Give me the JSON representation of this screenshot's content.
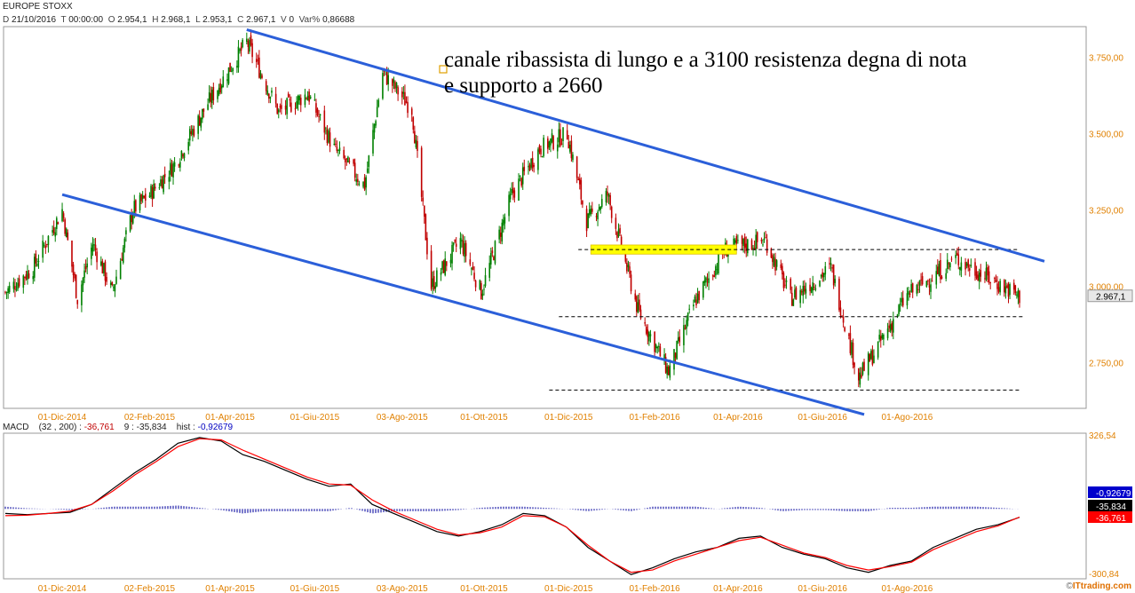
{
  "header": {
    "instrument": "EUROPE STOXX",
    "date_label": "D",
    "date": "21/10/2016",
    "time_label": "T",
    "time": "00:00:00",
    "open_label": "O",
    "open": "2.954,1",
    "high_label": "H",
    "high": "2.968,1",
    "low_label": "L",
    "low": "2.953,1",
    "close_label": "C",
    "close": "2.967,1",
    "volume_label": "V",
    "volume": "0",
    "var_label": "Var%",
    "var": "0,86688"
  },
  "annotation": {
    "line1": "canale ribassista di lungo e a 3100 resistenza degna di nota",
    "line2": "e supporto a 2660"
  },
  "macd_header": {
    "label": "MACD",
    "params": "(32 , 200) :",
    "macd_value": "-36,761",
    "signal_label": "9 :",
    "signal_value": "-35,834",
    "hist_label": "hist :",
    "hist_value": "-0,92679"
  },
  "copyright": {
    "symbol": "©",
    "brand": "ITtrading.com"
  },
  "colors": {
    "up_candle": "#008000",
    "down_candle": "#c00000",
    "channel": "#2b5fd9",
    "highlight": "#ffff00",
    "macd": "#000000",
    "signal": "#ff0000",
    "hist": "#2222aa"
  },
  "chart_data": [
    {
      "type": "candlestick",
      "title": "EUROPE STOXX",
      "ylim": [
        2600,
        3850
      ],
      "y_ticks": [
        "3.750,00",
        "3.500,00",
        "3.250,00",
        "3.000,00",
        "2.750,00"
      ],
      "y_tick_values": [
        3750,
        3500,
        3250,
        3000,
        2750
      ],
      "x_ticks": [
        "01-Dic-2014",
        "02-Feb-2015",
        "01-Apr-2015",
        "01-Giu-2015",
        "03-Ago-2015",
        "01-Ott-2015",
        "01-Dic-2015",
        "01-Feb-2016",
        "01-Apr-2016",
        "01-Giu-2016",
        "01-Ago-2016"
      ],
      "last_price_label": "2.967,1",
      "last_price": 2967.1,
      "approx_close_path": [
        [
          "2014-10-21",
          2980
        ],
        [
          "2014-11-10",
          3060
        ],
        [
          "2014-12-01",
          3250
        ],
        [
          "2014-12-12",
          2960
        ],
        [
          "2014-12-23",
          3140
        ],
        [
          "2015-01-06",
          2980
        ],
        [
          "2015-01-21",
          3250
        ],
        [
          "2015-02-02",
          3300
        ],
        [
          "2015-02-20",
          3400
        ],
        [
          "2015-03-16",
          3600
        ],
        [
          "2015-04-13",
          3800
        ],
        [
          "2015-05-06",
          3570
        ],
        [
          "2015-05-27",
          3630
        ],
        [
          "2015-06-15",
          3450
        ],
        [
          "2015-07-07",
          3330
        ],
        [
          "2015-07-20",
          3700
        ],
        [
          "2015-08-10",
          3580
        ],
        [
          "2015-08-24",
          3000
        ],
        [
          "2015-09-14",
          3150
        ],
        [
          "2015-09-29",
          2980
        ],
        [
          "2015-10-21",
          3300
        ],
        [
          "2015-11-10",
          3450
        ],
        [
          "2015-11-30",
          3500
        ],
        [
          "2015-12-14",
          3210
        ],
        [
          "2015-12-29",
          3300
        ],
        [
          "2016-01-20",
          2920
        ],
        [
          "2016-02-11",
          2720
        ],
        [
          "2016-03-01",
          2950
        ],
        [
          "2016-03-23",
          3120
        ],
        [
          "2016-04-21",
          3150
        ],
        [
          "2016-05-09",
          2960
        ],
        [
          "2016-06-07",
          3060
        ],
        [
          "2016-06-27",
          2700
        ],
        [
          "2016-07-08",
          2780
        ],
        [
          "2016-08-01",
          2970
        ],
        [
          "2016-08-22",
          3040
        ],
        [
          "2016-09-05",
          3090
        ],
        [
          "2016-10-21",
          2967
        ]
      ],
      "channel_upper": [
        [
          "2015-04-13",
          3840
        ],
        [
          "2016-10-21",
          3105
        ]
      ],
      "channel_lower": [
        [
          "2014-12-01",
          3300
        ],
        [
          "2016-07-01",
          2580
        ]
      ],
      "resistance_level": 3120,
      "support_levels": [
        2900,
        2660
      ],
      "highlight_zone": [
        3135,
        3105
      ]
    },
    {
      "type": "line",
      "title": "MACD",
      "ylim": [
        -300.84,
        326.54
      ],
      "y_ticks": [
        "326,54",
        "-300,84"
      ],
      "right_labels": [
        "-0,92679",
        "-35,834",
        "-36,761"
      ],
      "series": [
        {
          "name": "MACD",
          "values": [
            -20,
            -25,
            -20,
            -15,
            20,
            90,
            160,
            220,
            290,
            315,
            300,
            240,
            210,
            170,
            130,
            100,
            110,
            20,
            -20,
            -60,
            -100,
            -120,
            -100,
            -70,
            -20,
            -30,
            -80,
            -170,
            -230,
            -290,
            -260,
            -220,
            -190,
            -170,
            -130,
            -120,
            -170,
            -200,
            -220,
            -260,
            -280,
            -250,
            -230,
            -170,
            -130,
            -90,
            -70,
            -37
          ]
        },
        {
          "name": "signal",
          "values": [
            -30,
            -28,
            -20,
            -10,
            20,
            80,
            150,
            210,
            275,
            310,
            305,
            260,
            220,
            180,
            140,
            110,
            105,
            40,
            -10,
            -50,
            -90,
            -115,
            -105,
            -80,
            -30,
            -35,
            -80,
            -160,
            -230,
            -280,
            -270,
            -230,
            -200,
            -170,
            -140,
            -125,
            -160,
            -195,
            -215,
            -250,
            -270,
            -255,
            -235,
            -180,
            -140,
            -100,
            -75,
            -36
          ]
        },
        {
          "name": "hist",
          "values": [
            10,
            3,
            0,
            -5,
            0,
            10,
            10,
            10,
            15,
            5,
            -5,
            -20,
            -10,
            -10,
            -10,
            -10,
            5,
            -20,
            -10,
            -10,
            -10,
            -5,
            5,
            10,
            10,
            5,
            0,
            -10,
            0,
            -10,
            10,
            10,
            10,
            0,
            10,
            5,
            -10,
            -5,
            -5,
            -10,
            -10,
            5,
            5,
            10,
            10,
            10,
            5,
            -1
          ]
        }
      ]
    }
  ]
}
